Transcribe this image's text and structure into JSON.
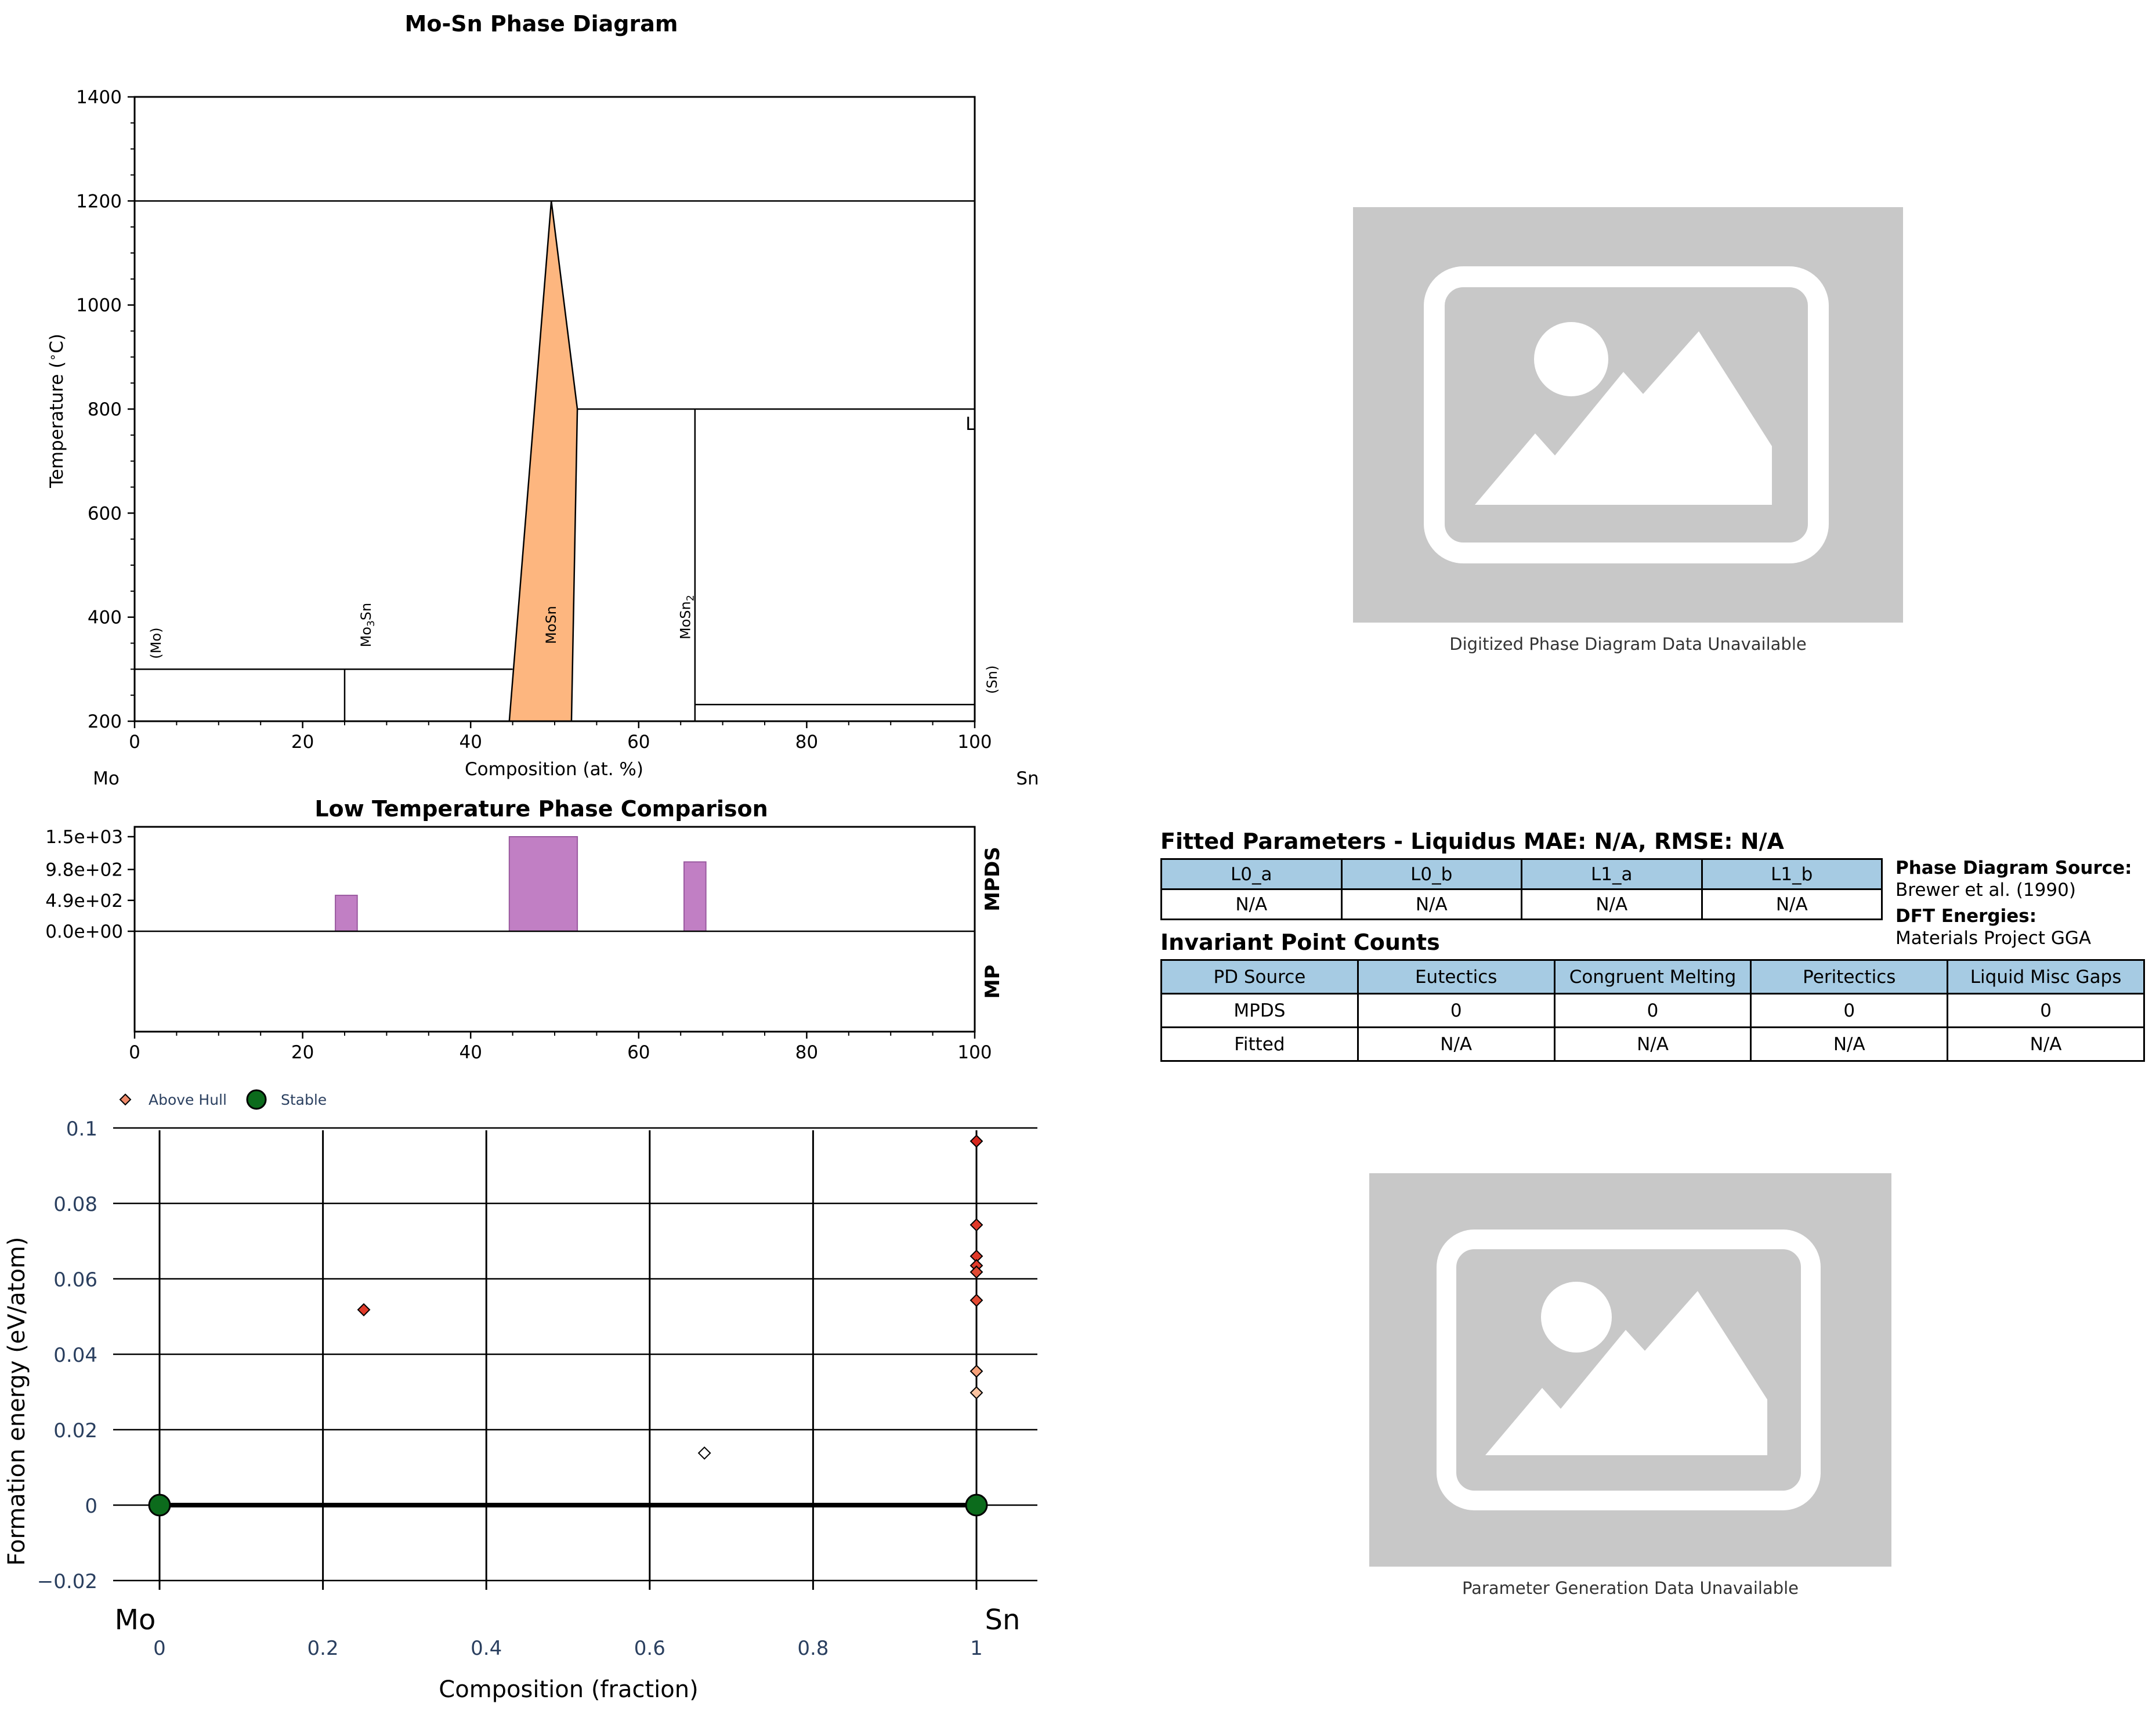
{
  "chart_data": [
    {
      "type": "line",
      "title": "Mo-Sn Phase Diagram",
      "xlabel": "Composition (at. %)",
      "ylabel": "Temperature (°C)",
      "xlim": [
        0,
        100
      ],
      "ylim": [
        200,
        1400
      ],
      "x_ticks": [
        "0",
        "20",
        "40",
        "60",
        "80",
        "100"
      ],
      "y_ticks": [
        "200",
        "400",
        "600",
        "800",
        "1000",
        "1200",
        "1400"
      ],
      "left_element": "Mo",
      "right_element": "Sn",
      "phase_fill_color": "#fdb67f",
      "regions": [
        {
          "name": "MoSn",
          "polygon": [
            [
              44.6,
              200
            ],
            [
              49.6,
              1200
            ],
            [
              52.7,
              800
            ],
            [
              52.0,
              200
            ]
          ]
        }
      ],
      "lines": [
        {
          "x": [
            0,
            100
          ],
          "y": [
            1200,
            1200
          ]
        },
        {
          "x": [
            52.7,
            100
          ],
          "y": [
            800,
            800
          ]
        },
        {
          "x": [
            66.7,
            66.7
          ],
          "y": [
            200,
            800
          ]
        },
        {
          "x": [
            0,
            45
          ],
          "y": [
            300,
            300
          ]
        },
        {
          "x": [
            25,
            25
          ],
          "y": [
            200,
            300
          ]
        },
        {
          "x": [
            66.7,
            100
          ],
          "y": [
            232,
            232
          ]
        }
      ],
      "phase_labels": [
        {
          "text": "(Mo)",
          "x": 2.5,
          "y": 350
        },
        {
          "text": "Mo3Sn",
          "x": 27.5,
          "y": 385
        },
        {
          "text": "MoSn",
          "x": 49.5,
          "y": 385
        },
        {
          "text": "MoSn2",
          "x": 65.5,
          "y": 400
        },
        {
          "text": "(Sn)",
          "x": 102,
          "y": 280
        },
        {
          "text": "L",
          "x": 99.5,
          "y": 760
        }
      ]
    },
    {
      "type": "bar",
      "title": "Low Temperature Phase Comparison",
      "xlim": [
        0,
        100
      ],
      "x_ticks": [
        "0",
        "20",
        "40",
        "60",
        "80",
        "100"
      ],
      "y_ticks": [
        "0.0e+00",
        "4.9e+02",
        "9.8e+02",
        "1.5e+03"
      ],
      "ylim": [
        0,
        1500
      ],
      "row_labels": [
        "MPDS",
        "MP"
      ],
      "bar_color": "#c17fc4",
      "series": [
        {
          "name": "MPDS",
          "bars": [
            {
              "x0": 23.9,
              "x1": 26.5,
              "value": 570
            },
            {
              "x0": 44.6,
              "x1": 52.7,
              "value": 1500
            },
            {
              "x0": 65.4,
              "x1": 68.0,
              "value": 1100
            }
          ]
        },
        {
          "name": "MP",
          "bars": []
        }
      ]
    },
    {
      "type": "scatter",
      "xlabel": "Composition (fraction)",
      "ylabel": "Formation energy (eV/atom)",
      "xlim": [
        -0.03,
        1.06
      ],
      "ylim": [
        -0.025,
        0.1
      ],
      "x_ticks": [
        "0",
        "0.2",
        "0.4",
        "0.6",
        "0.8",
        "1"
      ],
      "y_ticks": [
        "−0.02",
        "0",
        "0.02",
        "0.04",
        "0.06",
        "0.08",
        "0.1"
      ],
      "left_element": "Mo",
      "right_element": "Sn",
      "legend": [
        "Above Hull",
        "Stable"
      ],
      "legend_position": "top-left",
      "hull_line": {
        "x": [
          0,
          1
        ],
        "y": [
          0,
          0
        ]
      },
      "stable_points": [
        {
          "x": 0,
          "y": 0
        },
        {
          "x": 1,
          "y": 0
        }
      ],
      "above_hull_points": [
        {
          "x": 0.25,
          "y": 0.0518,
          "color": "#e03a2a"
        },
        {
          "x": 0.667,
          "y": 0.0138,
          "color": "#ffffff"
        },
        {
          "x": 1,
          "y": 0.0965,
          "color": "#d6281e"
        },
        {
          "x": 1,
          "y": 0.0743,
          "color": "#e03a2a"
        },
        {
          "x": 1,
          "y": 0.066,
          "color": "#e03a2a"
        },
        {
          "x": 1,
          "y": 0.0635,
          "color": "#e03a2a"
        },
        {
          "x": 1,
          "y": 0.0618,
          "color": "#e04a33"
        },
        {
          "x": 1,
          "y": 0.0543,
          "color": "#e34a33"
        },
        {
          "x": 1,
          "y": 0.0355,
          "color": "#f7a27a"
        },
        {
          "x": 1,
          "y": 0.0298,
          "color": "#fbc3a0"
        }
      ],
      "stable_color": "#0c6b1c",
      "grid": true
    }
  ],
  "captions": {
    "digitized": "Digitized Phase Diagram Data Unavailable",
    "param_gen": "Parameter Generation Data Unavailable"
  },
  "fitted": {
    "title": "Fitted Parameters - Liquidus MAE: N/A, RMSE: N/A",
    "headers": [
      "L0_a",
      "L0_b",
      "L1_a",
      "L1_b"
    ],
    "values": [
      "N/A",
      "N/A",
      "N/A",
      "N/A"
    ]
  },
  "source": {
    "pd_label": "Phase Diagram Source:",
    "pd_value": "Brewer et al. (1990)",
    "dft_label": "DFT Energies:",
    "dft_value": "Materials Project GGA"
  },
  "invariant": {
    "title": "Invariant Point Counts",
    "headers": [
      "PD Source",
      "Eutectics",
      "Congruent Melting",
      "Peritectics",
      "Liquid Misc Gaps"
    ],
    "rows": [
      [
        "MPDS",
        "0",
        "0",
        "0",
        "0"
      ],
      [
        "Fitted",
        "N/A",
        "N/A",
        "N/A",
        "N/A"
      ]
    ]
  }
}
